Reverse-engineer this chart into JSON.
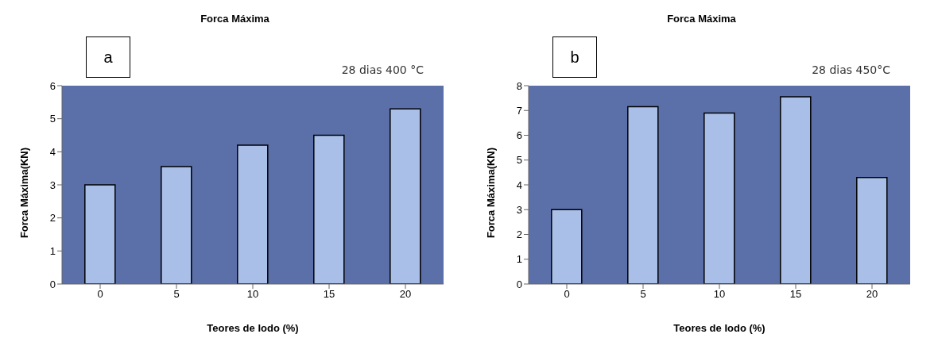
{
  "chart_data": [
    {
      "type": "bar",
      "title": "Forca Máxima",
      "xlabel": "Teores de Iodo (%)",
      "ylabel": "Forca Máxima(KN)",
      "categories": [
        "0",
        "5",
        "10",
        "15",
        "20"
      ],
      "values": [
        3.0,
        3.55,
        4.2,
        4.5,
        5.3
      ],
      "color": "#a9bfe8",
      "ylim": [
        0,
        6
      ],
      "yticks": [
        0,
        1,
        2,
        3,
        4,
        5,
        6
      ],
      "grid": false,
      "annotations": [
        "a",
        "28 dias 400 °C"
      ]
    },
    {
      "type": "bar",
      "title": "Forca Máxima",
      "xlabel": "Teores de Iodo (%)",
      "ylabel": "Forca Máxima(KN)",
      "categories": [
        "0",
        "5",
        "10",
        "15",
        "20"
      ],
      "values": [
        3.0,
        7.15,
        6.9,
        7.55,
        4.3
      ],
      "color": "#a9bfe8",
      "ylim": [
        0,
        8
      ],
      "yticks": [
        0,
        1,
        2,
        3,
        4,
        5,
        6,
        7,
        8
      ],
      "grid": false,
      "annotations": [
        "b",
        "28 dias 450°C"
      ]
    }
  ]
}
